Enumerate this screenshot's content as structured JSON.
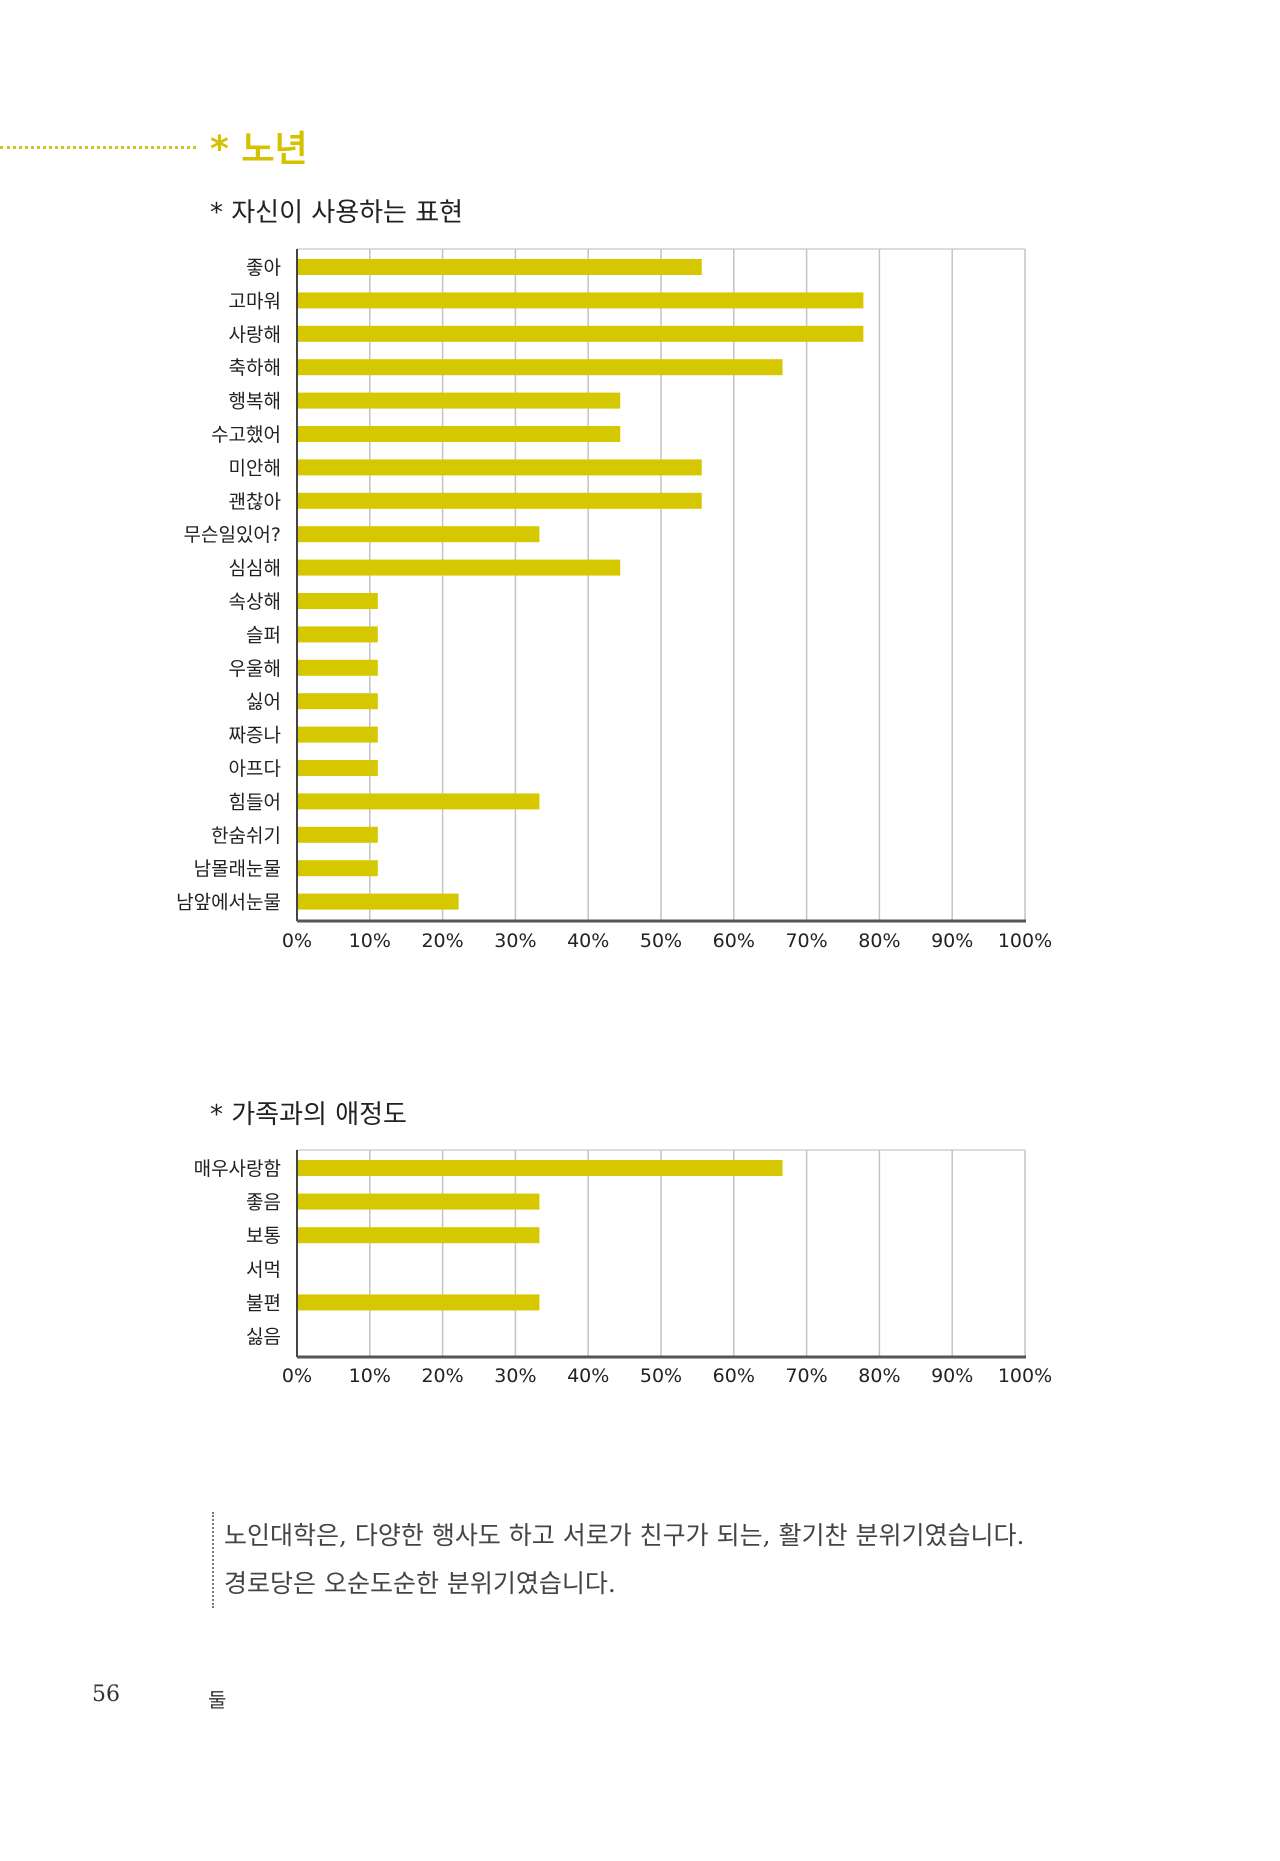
{
  "section": {
    "bullet": "*",
    "title": "노년"
  },
  "charts_meta": [
    {
      "heading": "* 자신이 사용하는 표현"
    },
    {
      "heading": "* 가족과의 애정도"
    }
  ],
  "chart_data": [
    {
      "type": "bar",
      "orientation": "horizontal",
      "title": "* 자신이 사용하는 표현",
      "categories": [
        "좋아",
        "고마워",
        "사랑해",
        "축하해",
        "행복해",
        "수고했어",
        "미안해",
        "괜찮아",
        "무슨일있어?",
        "심심해",
        "속상해",
        "슬퍼",
        "우울해",
        "싫어",
        "짜증나",
        "아프다",
        "힘들어",
        "한숨쉬기",
        "남몰래눈물",
        "남앞에서눈물"
      ],
      "values": [
        55.6,
        77.8,
        77.8,
        66.7,
        44.4,
        44.4,
        55.6,
        55.6,
        33.3,
        44.4,
        11.1,
        11.1,
        11.1,
        11.1,
        11.1,
        11.1,
        33.3,
        11.1,
        11.1,
        22.2
      ],
      "xlim": [
        0,
        100
      ],
      "ticks": [
        "0%",
        "10%",
        "20%",
        "30%",
        "40%",
        "50%",
        "60%",
        "70%",
        "80%",
        "90%",
        "100%"
      ],
      "grid": true,
      "bar_color": "#d6c800"
    },
    {
      "type": "bar",
      "orientation": "horizontal",
      "title": "* 가족과의 애정도",
      "categories": [
        "매우사랑함",
        "좋음",
        "보통",
        "서먹",
        "불편",
        "싫음"
      ],
      "values": [
        66.7,
        33.3,
        33.3,
        0,
        33.3,
        0
      ],
      "xlim": [
        0,
        100
      ],
      "ticks": [
        "0%",
        "10%",
        "20%",
        "30%",
        "40%",
        "50%",
        "60%",
        "70%",
        "80%",
        "90%",
        "100%"
      ],
      "grid": true,
      "bar_color": "#d6c800"
    }
  ],
  "note": {
    "text": "노인대학은, 다양한 행사도 하고 서로가 친구가 되는, 활기찬 분위기였습니다. 경로당은 오순도순한 분위기였습니다."
  },
  "footer": {
    "page_number": "56",
    "chapter": "둘"
  }
}
